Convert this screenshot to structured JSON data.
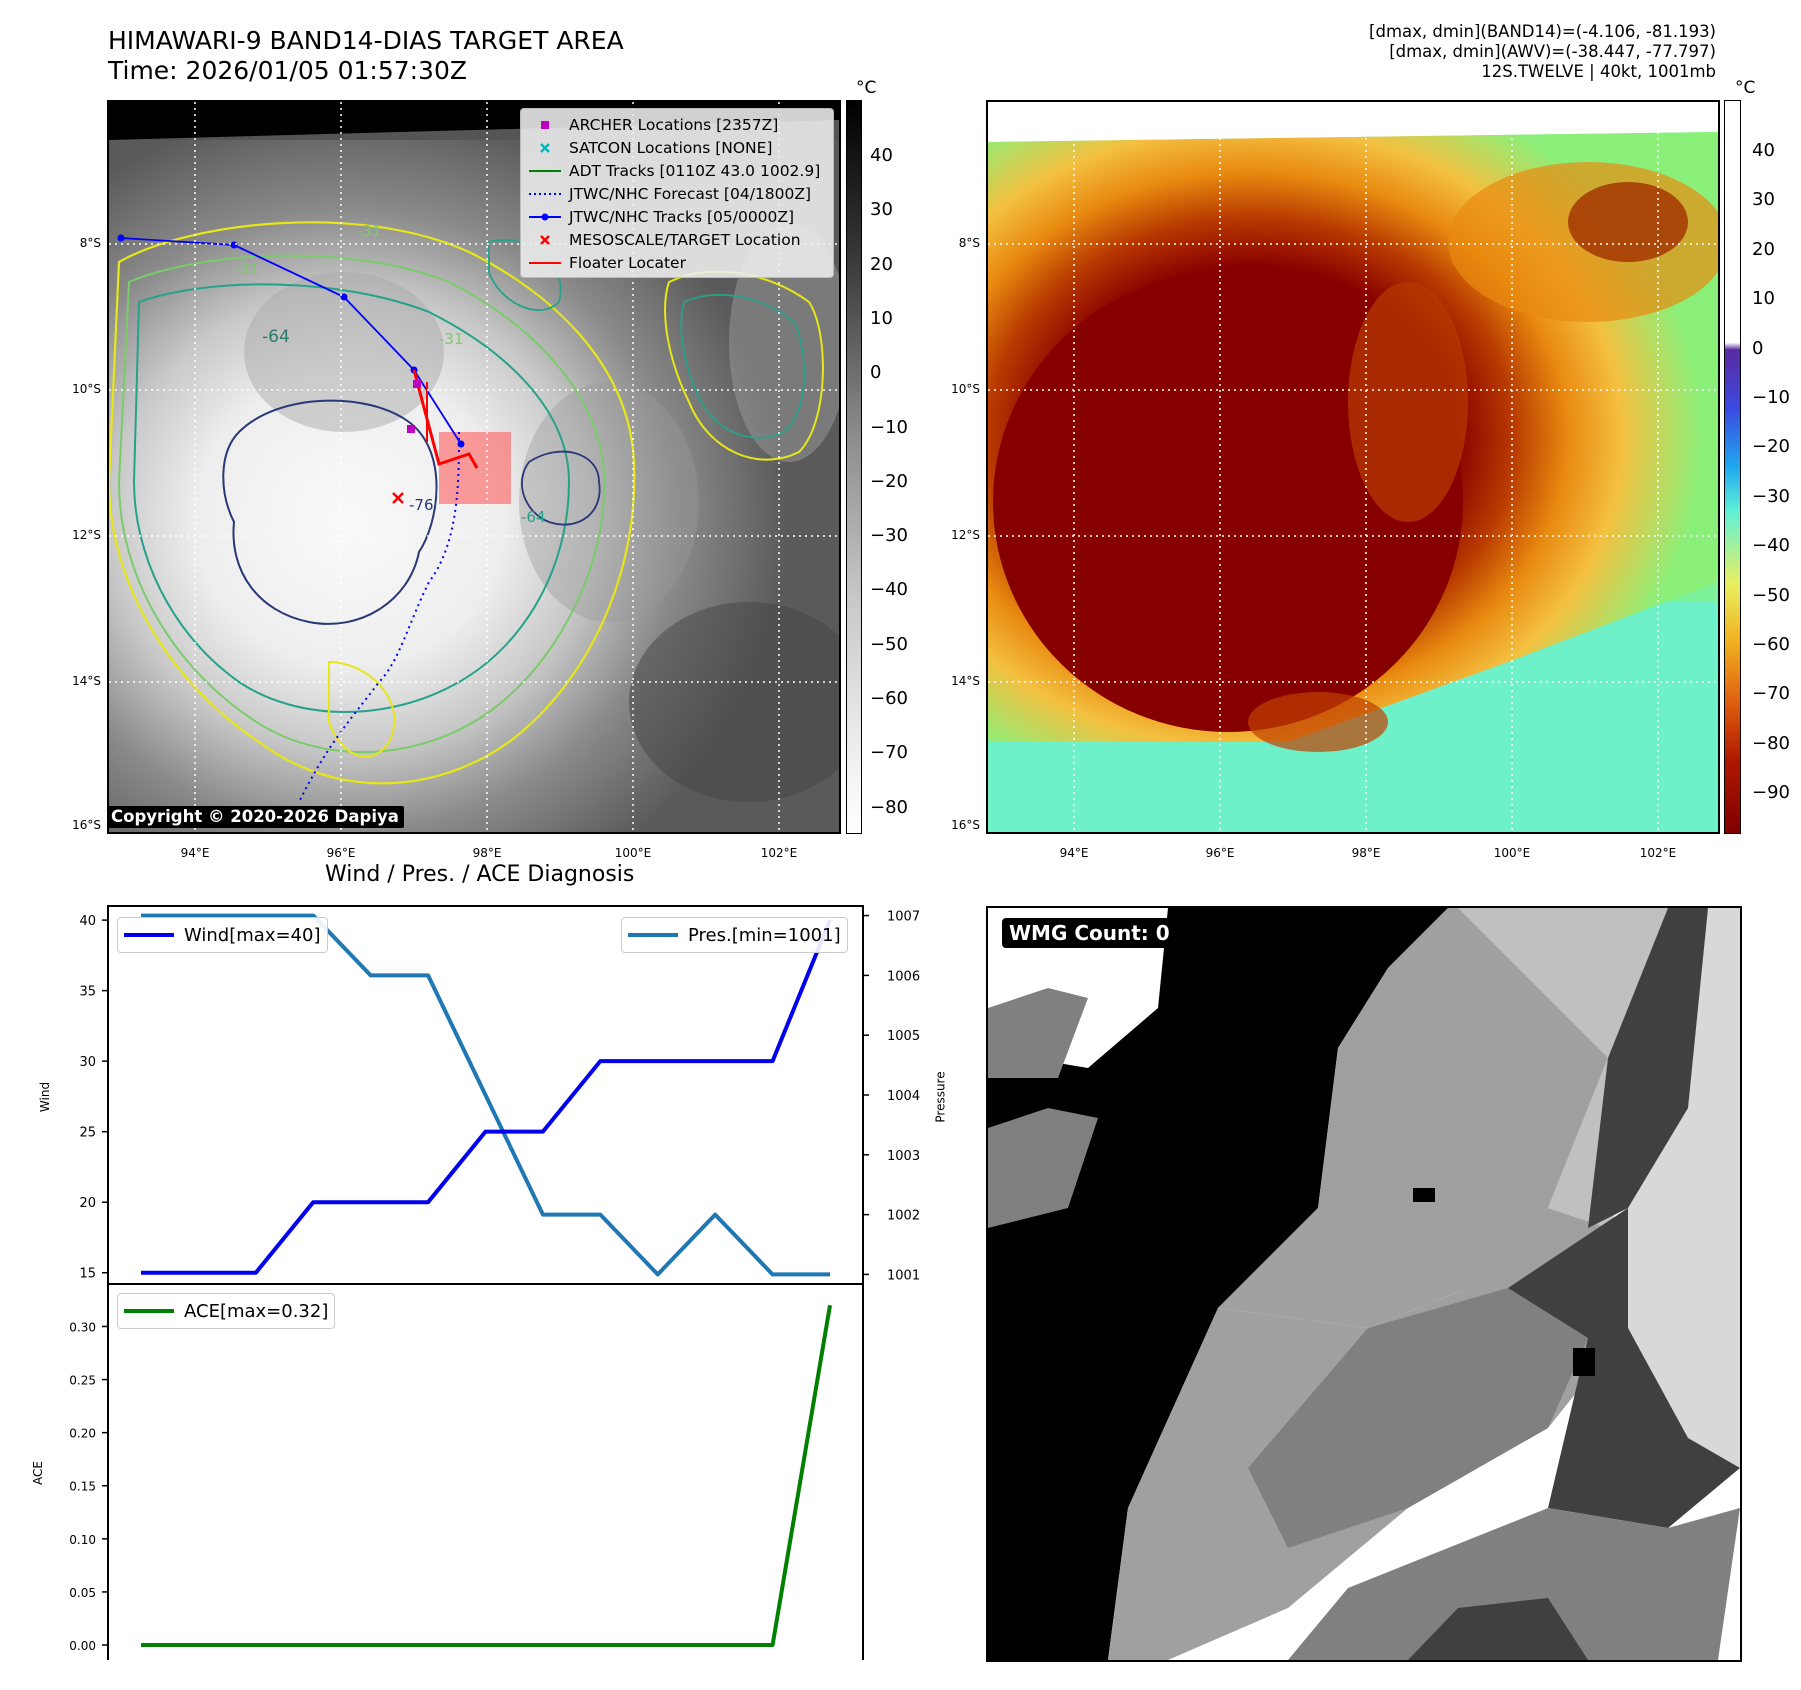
{
  "header": {
    "title_line1": "HIMAWARI-9 BAND14-DIAS TARGET AREA",
    "title_line2": "Time: 2026/01/05 01:57:30Z",
    "right_line1": "[dmax, dmin](BAND14)=(-4.106, -81.193)",
    "right_line2": "[dmax, dmin](AWV)=(-38.447, -77.797)",
    "right_line3": "12S.TWELVE | 40kt, 1001mb"
  },
  "map_axes": {
    "lon_ticks": [
      "94°E",
      "96°E",
      "98°E",
      "100°E",
      "102°E"
    ],
    "lat_ticks": [
      "8°S",
      "10°S",
      "12°S",
      "14°S",
      "16°S"
    ]
  },
  "colorbar_ir": {
    "unit": "°C",
    "ticks": [
      "40",
      "30",
      "20",
      "10",
      "0",
      "−10",
      "−20",
      "−30",
      "−40",
      "−50",
      "−60",
      "−70",
      "−80"
    ]
  },
  "colorbar_awv": {
    "unit": "°C",
    "ticks": [
      "40",
      "30",
      "20",
      "10",
      "0",
      "−10",
      "−20",
      "−30",
      "−40",
      "−50",
      "−60",
      "−70",
      "−80",
      "−90"
    ]
  },
  "map_legend": [
    {
      "label": "ARCHER Locations [2357Z]",
      "symbol": "square",
      "color": "#c000c0"
    },
    {
      "label": "SATCON Locations [NONE]",
      "symbol": "x",
      "color": "#00b8b8"
    },
    {
      "label": "ADT Tracks [0110Z 43.0 1002.9]",
      "symbol": "line",
      "color": "#008000"
    },
    {
      "label": "JTWC/NHC Forecast [04/1800Z]",
      "symbol": "dotted",
      "color": "#0000ff"
    },
    {
      "label": "JTWC/NHC Tracks [05/0000Z]",
      "symbol": "line-dot",
      "color": "#0000ff"
    },
    {
      "label": "MESOSCALE/TARGET Location",
      "symbol": "x",
      "color": "#ff0000"
    },
    {
      "label": "Floater Locater",
      "symbol": "line",
      "color": "#ff0000"
    }
  ],
  "contour_labels": [
    "-31",
    "-31",
    "-64",
    "-31",
    "-76",
    "-64"
  ],
  "copyright": "Copyright © 2020-2026 Dapiya",
  "wmg_label": "WMG Count: 0",
  "chart_data": [
    {
      "type": "line",
      "title": "Wind / Pres. / ACE Diagnosis",
      "ylabel": "Wind",
      "y2label": "Pressure",
      "ylim": [
        14.2,
        41
      ],
      "y2lim": [
        1000.84,
        1007.16
      ],
      "yticks": [
        15,
        20,
        25,
        30,
        35,
        40
      ],
      "y2ticks": [
        1001,
        1002,
        1003,
        1004,
        1005,
        1006,
        1007
      ],
      "series": [
        {
          "name": "Wind[max=40]",
          "color": "#0000ee",
          "axis": "left",
          "values": [
            15,
            15,
            15,
            20,
            20,
            20,
            25,
            25,
            30,
            30,
            30,
            30,
            40
          ]
        },
        {
          "name": "Pres.[min=1001]",
          "color": "#1f77b4",
          "axis": "right",
          "values": [
            1007,
            1007,
            1007,
            1007,
            1006,
            1006,
            1004,
            1002,
            1002,
            1001,
            1002,
            1001,
            1001
          ]
        }
      ]
    },
    {
      "type": "line",
      "ylabel": "ACE",
      "ylim": [
        -0.016,
        0.34
      ],
      "yticks": [
        "0.00",
        "0.05",
        "0.10",
        "0.15",
        "0.20",
        "0.25",
        "0.30"
      ],
      "series": [
        {
          "name": "ACE[max=0.32]",
          "color": "#008000",
          "values": [
            0,
            0,
            0,
            0,
            0,
            0,
            0,
            0,
            0,
            0,
            0,
            0,
            0.32
          ]
        }
      ]
    }
  ]
}
